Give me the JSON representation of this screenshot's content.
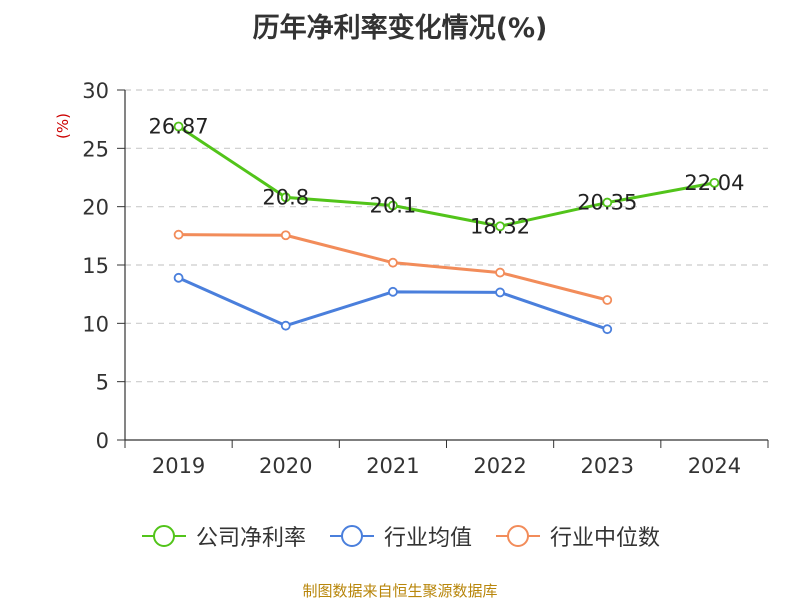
{
  "chart_data": {
    "type": "line",
    "title": "历年净利率变化情况(%)",
    "ylabel": "(%)",
    "xlabel": "",
    "categories": [
      "2019",
      "2020",
      "2021",
      "2022",
      "2023",
      "2024"
    ],
    "ylim": [
      0,
      30
    ],
    "yticks": [
      0,
      5,
      10,
      15,
      20,
      25,
      30
    ],
    "grid": true,
    "legend_position": "bottom",
    "series": [
      {
        "name": "公司净利率",
        "color": "#52c41a",
        "values": [
          26.87,
          20.8,
          20.1,
          18.32,
          20.35,
          22.04
        ],
        "labels": true
      },
      {
        "name": "行业均值",
        "color": "#4a7fdc",
        "values": [
          13.9,
          9.8,
          12.7,
          12.65,
          9.5,
          null
        ],
        "labels": false
      },
      {
        "name": "行业中位数",
        "color": "#f28c5a",
        "values": [
          17.6,
          17.55,
          15.2,
          14.35,
          12.0,
          null
        ],
        "labels": false
      }
    ]
  },
  "footer": {
    "source": "制图数据来自恒生聚源数据库"
  }
}
